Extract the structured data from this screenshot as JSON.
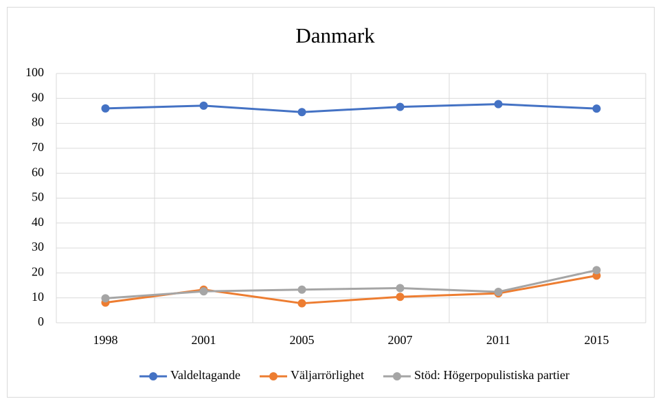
{
  "chart_data": {
    "type": "line",
    "title": "Danmark",
    "categories": [
      "1998",
      "2001",
      "2005",
      "2007",
      "2011",
      "2015"
    ],
    "series": [
      {
        "name": "Valdeltagande",
        "color": "#4472c4",
        "values": [
          86,
          87.1,
          84.5,
          86.6,
          87.7,
          85.9
        ]
      },
      {
        "name": "Väljarrörlighet",
        "color": "#ed7d31",
        "values": [
          8.1,
          13.3,
          7.8,
          10.4,
          11.8,
          18.9
        ]
      },
      {
        "name": "Stöd: Högerpopulistiska partier",
        "color": "#a5a5a5",
        "values": [
          9.8,
          12.6,
          13.3,
          13.9,
          12.4,
          21.1
        ]
      }
    ],
    "ylim": [
      0,
      100
    ],
    "yticks": [
      0,
      10,
      20,
      30,
      40,
      50,
      60,
      70,
      80,
      90,
      100
    ],
    "grid": true,
    "legend": "bottom"
  }
}
